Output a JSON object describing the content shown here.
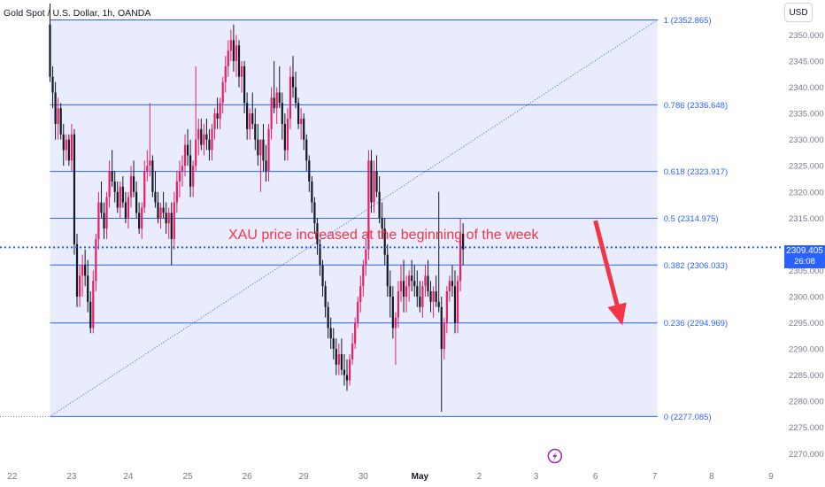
{
  "header": {
    "symbol_title": "Gold Spot / U.S. Dollar, 1h, OANDA",
    "currency": "USD"
  },
  "last_price": {
    "value": "2309.405",
    "countdown": "26:08",
    "price": 2309.405
  },
  "annotation": {
    "text": "XAU price increased at the beginning of the week"
  },
  "icons": {
    "event": "lightning-icon",
    "arrow": "down-arrow-icon"
  },
  "colors": {
    "up": "#e91e63",
    "down": "#131722",
    "fib_line": "#2962ff",
    "fib_fill": "#e8ecfd",
    "annotation": "#f23645",
    "arrow": "#f23645",
    "price_line": "#2962ff"
  },
  "chart_data": {
    "type": "candlestick",
    "title": "Gold Spot / U.S. Dollar, 1h, OANDA",
    "ylim": [
      2267,
      2356
    ],
    "y_ticks": [
      {
        "value": 2270,
        "label": "2270.000"
      },
      {
        "value": 2275,
        "label": "2275.000"
      },
      {
        "value": 2280,
        "label": "2280.000"
      },
      {
        "value": 2285,
        "label": "2285.000"
      },
      {
        "value": 2290,
        "label": "2290.000"
      },
      {
        "value": 2295,
        "label": "2295.000"
      },
      {
        "value": 2300,
        "label": "2300.000"
      },
      {
        "value": 2305,
        "label": "2305.000"
      },
      {
        "value": 2310,
        "label": "2310.000"
      },
      {
        "value": 2315,
        "label": "2315.000"
      },
      {
        "value": 2320,
        "label": "2320.000"
      },
      {
        "value": 2325,
        "label": "2325.000"
      },
      {
        "value": 2330,
        "label": "2330.000"
      },
      {
        "value": 2335,
        "label": "2335.000"
      },
      {
        "value": 2340,
        "label": "2340.000"
      },
      {
        "value": 2345,
        "label": "2345.000"
      },
      {
        "value": 2350,
        "label": "2350.000"
      }
    ],
    "x_ticks": [
      {
        "label": "22",
        "bar": -14,
        "bold": false
      },
      {
        "label": "23",
        "bar": 8,
        "bold": false
      },
      {
        "label": "24",
        "bar": 29,
        "bold": false
      },
      {
        "label": "25",
        "bar": 51,
        "bold": false
      },
      {
        "label": "26",
        "bar": 73,
        "bold": false
      },
      {
        "label": "29",
        "bar": 94,
        "bold": false
      },
      {
        "label": "30",
        "bar": 116,
        "bold": false
      },
      {
        "label": "May",
        "bar": 137,
        "bold": true
      },
      {
        "label": "2",
        "bar": 159,
        "bold": false
      },
      {
        "label": "3",
        "bar": 180,
        "bold": false
      },
      {
        "label": "6",
        "bar": 202,
        "bold": false
      },
      {
        "label": "7",
        "bar": 224,
        "bold": false
      },
      {
        "label": "8",
        "bar": 245,
        "bold": false
      },
      {
        "label": "9",
        "bar": 267,
        "bold": false
      }
    ],
    "fib_levels": [
      {
        "ratio": "1",
        "price": 2352.865,
        "label": "1 (2352.865)"
      },
      {
        "ratio": "0.786",
        "price": 2336.648,
        "label": "0.786 (2336.648)"
      },
      {
        "ratio": "0.618",
        "price": 2323.917,
        "label": "0.618 (2323.917)"
      },
      {
        "ratio": "0.5",
        "price": 2314.975,
        "label": "0.5 (2314.975)"
      },
      {
        "ratio": "0.382",
        "price": 2306.033,
        "label": "0.382 (2306.033)"
      },
      {
        "ratio": "0.236",
        "price": 2294.969,
        "label": "0.236 (2294.969)"
      },
      {
        "ratio": "0",
        "price": 2277.085,
        "label": "0 (2277.085)"
      }
    ],
    "fib_range": {
      "start_bar": 0,
      "end_bar": 225
    },
    "projection_arrow": {
      "from_bar": 202,
      "from_price": 2314.5,
      "to_bar": 212,
      "to_price": 2294.5
    },
    "event_marker_bar": 187,
    "candles": [
      [
        2352,
        2356,
        2341,
        2342
      ],
      [
        2342,
        2344,
        2336,
        2339
      ],
      [
        2339,
        2341,
        2330,
        2333
      ],
      [
        2333,
        2338,
        2330,
        2336
      ],
      [
        2336,
        2337,
        2330,
        2331
      ],
      [
        2331,
        2333,
        2325,
        2328
      ],
      [
        2328,
        2331,
        2326,
        2330
      ],
      [
        2330,
        2331,
        2325,
        2326
      ],
      [
        2326,
        2333,
        2324,
        2331
      ],
      [
        2331,
        2332,
        2308,
        2310
      ],
      [
        2310,
        2312,
        2298,
        2300
      ],
      [
        2300,
        2306,
        2298,
        2304
      ],
      [
        2304,
        2308,
        2300,
        2306
      ],
      [
        2306,
        2309,
        2302,
        2304
      ],
      [
        2304,
        2307,
        2297,
        2299
      ],
      [
        2299,
        2301,
        2293,
        2294
      ],
      [
        2294,
        2305,
        2293,
        2303
      ],
      [
        2303,
        2312,
        2301,
        2311
      ],
      [
        2311,
        2320,
        2309,
        2318
      ],
      [
        2318,
        2322,
        2315,
        2316
      ],
      [
        2316,
        2318,
        2311,
        2313
      ],
      [
        2313,
        2320,
        2311,
        2319
      ],
      [
        2319,
        2326,
        2317,
        2324
      ],
      [
        2324,
        2328,
        2321,
        2322
      ],
      [
        2322,
        2324,
        2318,
        2320
      ],
      [
        2320,
        2322,
        2316,
        2317
      ],
      [
        2317,
        2322,
        2315,
        2321
      ],
      [
        2321,
        2323,
        2317,
        2318
      ],
      [
        2318,
        2320,
        2314,
        2315
      ],
      [
        2315,
        2320,
        2313,
        2319
      ],
      [
        2319,
        2325,
        2317,
        2323
      ],
      [
        2323,
        2326,
        2319,
        2320
      ],
      [
        2320,
        2322,
        2315,
        2316
      ],
      [
        2316,
        2318,
        2312,
        2313
      ],
      [
        2313,
        2318,
        2311,
        2317
      ],
      [
        2317,
        2326,
        2316,
        2324
      ],
      [
        2324,
        2328,
        2322,
        2325
      ],
      [
        2325,
        2337,
        2323,
        2326
      ],
      [
        2326,
        2327,
        2319,
        2320
      ],
      [
        2320,
        2324,
        2317,
        2318
      ],
      [
        2318,
        2320,
        2314,
        2315
      ],
      [
        2315,
        2318,
        2313,
        2317
      ],
      [
        2317,
        2320,
        2315,
        2316
      ],
      [
        2316,
        2318,
        2312,
        2314
      ],
      [
        2314,
        2317,
        2311,
        2316
      ],
      [
        2316,
        2318,
        2306,
        2311
      ],
      [
        2311,
        2320,
        2309,
        2318
      ],
      [
        2318,
        2324,
        2316,
        2322
      ],
      [
        2322,
        2326,
        2319,
        2324
      ],
      [
        2324,
        2327,
        2321,
        2325
      ],
      [
        2325,
        2331,
        2323,
        2329
      ],
      [
        2329,
        2332,
        2325,
        2327
      ],
      [
        2327,
        2330,
        2319,
        2321
      ],
      [
        2321,
        2326,
        2319,
        2325
      ],
      [
        2325,
        2344,
        2324,
        2330
      ],
      [
        2330,
        2334,
        2327,
        2332
      ],
      [
        2332,
        2334,
        2328,
        2329
      ],
      [
        2329,
        2333,
        2327,
        2331
      ],
      [
        2331,
        2334,
        2328,
        2330
      ],
      [
        2330,
        2332,
        2326,
        2328
      ],
      [
        2328,
        2333,
        2326,
        2332
      ],
      [
        2332,
        2336,
        2330,
        2335
      ],
      [
        2335,
        2338,
        2332,
        2334
      ],
      [
        2334,
        2338,
        2332,
        2337
      ],
      [
        2337,
        2342,
        2335,
        2341
      ],
      [
        2341,
        2346,
        2339,
        2344
      ],
      [
        2344,
        2349,
        2342,
        2347
      ],
      [
        2347,
        2351,
        2345,
        2349
      ],
      [
        2349,
        2352,
        2343,
        2345
      ],
      [
        2345,
        2350,
        2342,
        2348
      ],
      [
        2348,
        2349,
        2340,
        2342
      ],
      [
        2342,
        2345,
        2339,
        2344
      ],
      [
        2344,
        2345,
        2335,
        2337
      ],
      [
        2337,
        2339,
        2330,
        2332
      ],
      [
        2332,
        2336,
        2330,
        2335
      ],
      [
        2335,
        2339,
        2332,
        2333
      ],
      [
        2333,
        2336,
        2328,
        2330
      ],
      [
        2330,
        2333,
        2325,
        2327
      ],
      [
        2327,
        2330,
        2320,
        2330
      ],
      [
        2330,
        2333,
        2324,
        2326
      ],
      [
        2326,
        2329,
        2322,
        2324
      ],
      [
        2324,
        2333,
        2322,
        2332
      ],
      [
        2332,
        2340,
        2330,
        2338
      ],
      [
        2338,
        2345,
        2335,
        2336
      ],
      [
        2336,
        2340,
        2333,
        2339
      ],
      [
        2339,
        2344,
        2336,
        2337
      ],
      [
        2337,
        2339,
        2330,
        2333
      ],
      [
        2333,
        2335,
        2326,
        2328
      ],
      [
        2328,
        2336,
        2326,
        2334
      ],
      [
        2334,
        2344,
        2332,
        2342
      ],
      [
        2342,
        2346,
        2338,
        2340
      ],
      [
        2340,
        2343,
        2336,
        2337
      ],
      [
        2337,
        2338,
        2332,
        2333
      ],
      [
        2333,
        2336,
        2330,
        2334
      ],
      [
        2334,
        2335,
        2328,
        2330
      ],
      [
        2330,
        2331,
        2324,
        2326
      ],
      [
        2326,
        2327,
        2320,
        2322
      ],
      [
        2322,
        2323,
        2316,
        2318
      ],
      [
        2318,
        2319,
        2312,
        2314
      ],
      [
        2314,
        2315,
        2308,
        2310
      ],
      [
        2310,
        2311,
        2304,
        2306
      ],
      [
        2306,
        2307,
        2300,
        2302
      ],
      [
        2302,
        2303,
        2296,
        2298
      ],
      [
        2298,
        2299,
        2292,
        2294
      ],
      [
        2294,
        2296,
        2290,
        2292
      ],
      [
        2292,
        2294,
        2288,
        2290
      ],
      [
        2290,
        2292,
        2285,
        2287
      ],
      [
        2287,
        2291,
        2285,
        2289
      ],
      [
        2289,
        2292,
        2285,
        2286
      ],
      [
        2286,
        2289,
        2283,
        2285
      ],
      [
        2285,
        2288,
        2282,
        2284
      ],
      [
        2284,
        2289,
        2283,
        2288
      ],
      [
        2288,
        2293,
        2287,
        2291
      ],
      [
        2291,
        2296,
        2290,
        2295
      ],
      [
        2295,
        2300,
        2294,
        2299
      ],
      [
        2299,
        2304,
        2297,
        2302
      ],
      [
        2302,
        2307,
        2300,
        2306
      ],
      [
        2306,
        2311,
        2304,
        2309
      ],
      [
        2309,
        2328,
        2307,
        2326
      ],
      [
        2326,
        2328,
        2316,
        2318
      ],
      [
        2318,
        2326,
        2316,
        2324
      ],
      [
        2324,
        2327,
        2319,
        2320
      ],
      [
        2320,
        2323,
        2314,
        2315
      ],
      [
        2315,
        2318,
        2311,
        2313
      ],
      [
        2313,
        2315,
        2306,
        2308
      ],
      [
        2308,
        2310,
        2300,
        2302
      ],
      [
        2302,
        2305,
        2296,
        2300
      ],
      [
        2300,
        2302,
        2292,
        2294
      ],
      [
        2294,
        2297,
        2287,
        2296
      ],
      [
        2296,
        2303,
        2294,
        2301
      ],
      [
        2301,
        2306,
        2299,
        2303
      ],
      [
        2303,
        2307,
        2297,
        2300
      ],
      [
        2300,
        2304,
        2297,
        2302
      ],
      [
        2302,
        2305,
        2299,
        2304
      ],
      [
        2304,
        2307,
        2301,
        2303
      ],
      [
        2303,
        2306,
        2300,
        2302
      ],
      [
        2302,
        2305,
        2298,
        2300
      ],
      [
        2300,
        2303,
        2297,
        2298
      ],
      [
        2298,
        2303,
        2296,
        2302
      ],
      [
        2302,
        2306,
        2300,
        2304
      ],
      [
        2304,
        2307,
        2300,
        2301
      ],
      [
        2301,
        2303,
        2297,
        2299
      ],
      [
        2299,
        2302,
        2296,
        2301
      ],
      [
        2301,
        2304,
        2298,
        2299
      ],
      [
        2299,
        2320,
        2297,
        2298
      ],
      [
        2298,
        2300,
        2278,
        2290
      ],
      [
        2290,
        2296,
        2288,
        2295
      ],
      [
        2295,
        2302,
        2293,
        2301
      ],
      [
        2301,
        2304,
        2299,
        2303
      ],
      [
        2303,
        2306,
        2300,
        2302
      ],
      [
        2302,
        2305,
        2293,
        2295
      ],
      [
        2295,
        2304,
        2293,
        2303
      ],
      [
        2303,
        2315,
        2301,
        2312
      ],
      [
        2312,
        2314,
        2306,
        2309
      ]
    ]
  }
}
